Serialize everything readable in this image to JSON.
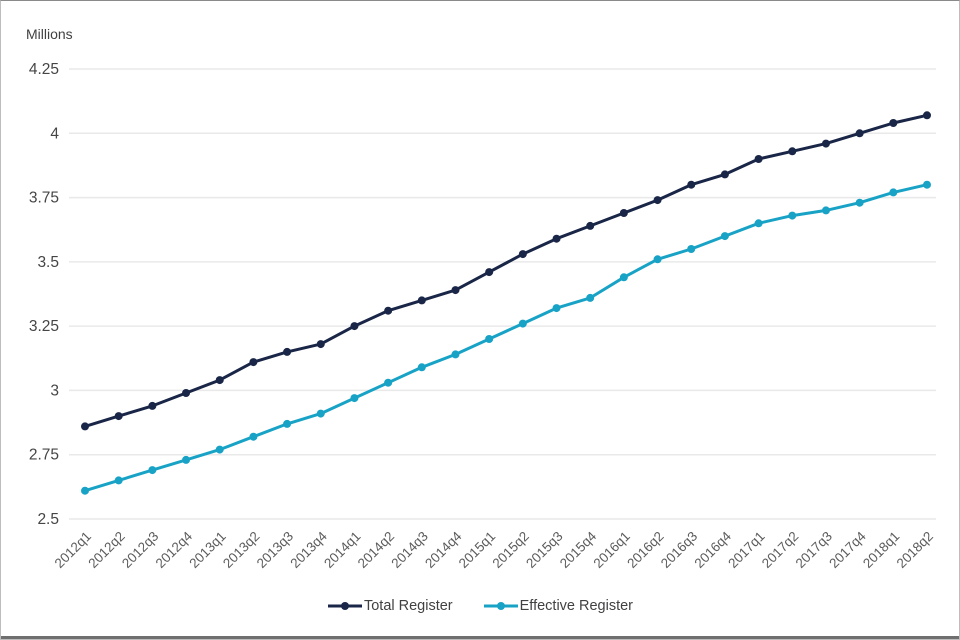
{
  "frame": {
    "background": "#ffffff",
    "border_color": "#bdbdbd",
    "bottom_bar_color": "#6f6f6f"
  },
  "chart_data": {
    "type": "line",
    "title": "",
    "unit_label": "Millions",
    "xlabel": "",
    "ylabel": "Millions",
    "ylim": [
      2.5,
      4.25
    ],
    "ytick_labels": [
      "2.5",
      "2.75",
      "3",
      "3.25",
      "3.5",
      "3.75",
      "4",
      "4.25"
    ],
    "ytick_values": [
      2.5,
      2.75,
      3.0,
      3.25,
      3.5,
      3.75,
      4.0,
      4.25
    ],
    "grid": true,
    "legend_position": "bottom",
    "categories": [
      "2012q1",
      "2012q2",
      "2012q3",
      "2012q4",
      "2013q1",
      "2013q2",
      "2013q3",
      "2013q4",
      "2014q1",
      "2014q2",
      "2014q3",
      "2014q4",
      "2015q1",
      "2015q2",
      "2015q3",
      "2015q4",
      "2016q1",
      "2016q2",
      "2016q3",
      "2016q4",
      "2017q1",
      "2017q2",
      "2017q3",
      "2017q4",
      "2018q1",
      "2018q2"
    ],
    "series": [
      {
        "name": "Total Register",
        "color": "#1a2647",
        "values": [
          2.86,
          2.9,
          2.94,
          2.99,
          3.04,
          3.11,
          3.15,
          3.18,
          3.25,
          3.31,
          3.35,
          3.39,
          3.46,
          3.53,
          3.59,
          3.64,
          3.69,
          3.74,
          3.8,
          3.84,
          3.9,
          3.93,
          3.96,
          4.0,
          4.04,
          4.07
        ]
      },
      {
        "name": "Effective Register",
        "color": "#18a3c6",
        "values": [
          2.61,
          2.65,
          2.69,
          2.73,
          2.77,
          2.82,
          2.87,
          2.91,
          2.97,
          3.03,
          3.09,
          3.14,
          3.2,
          3.26,
          3.32,
          3.36,
          3.44,
          3.51,
          3.55,
          3.6,
          3.65,
          3.68,
          3.7,
          3.73,
          3.77,
          3.8
        ]
      }
    ],
    "text_colors": {
      "y_ticks": "#454545",
      "x_ticks": "#5c5c5c",
      "unit_label": "#414042"
    },
    "gridline_color": "#e9e9e9"
  }
}
